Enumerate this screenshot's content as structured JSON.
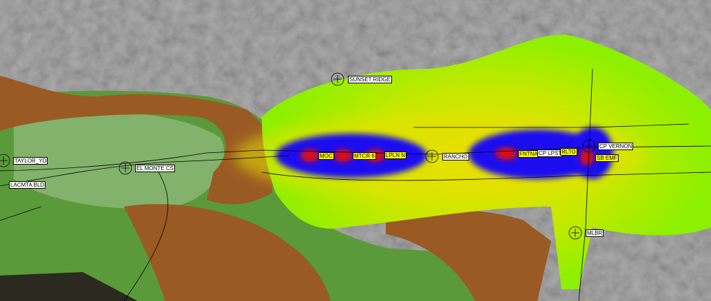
{
  "map": {
    "type": "radio coverage heatmap over shaded relief terrain",
    "colors": {
      "relief": "#8c8c8c",
      "lowland_green": "#5a9a3a",
      "pale_green": "#8cb878",
      "brown_hills": "#9a5a24",
      "coverage_edge": "#8cf000",
      "coverage_mid": "#e8e000",
      "coverage_strong": "#1a10f0",
      "coverage_peak": "#e01010",
      "label_site": "#ffffff",
      "label_highlight": "#ffff00"
    },
    "sites": [
      {
        "name": "SUNSET RIDGE",
        "style": "white"
      },
      {
        "name": "TAYLOR_YD",
        "style": "white"
      },
      {
        "name": "LACMTA BLD",
        "style": "white"
      },
      {
        "name": "EL MONTE CS",
        "style": "white"
      },
      {
        "name": "MOC",
        "style": "yellow"
      },
      {
        "name": "MTCR 6",
        "style": "yellow"
      },
      {
        "name": "LPLN N",
        "style": "yellow"
      },
      {
        "name": "RANCHO",
        "style": "white"
      },
      {
        "name": "FNTNA",
        "style": "yellow"
      },
      {
        "name": "CP LPST",
        "style": "white"
      },
      {
        "name": "RLTO",
        "style": "yellow"
      },
      {
        "name": "CP VERNON",
        "style": "white"
      },
      {
        "name": "SB EMF",
        "style": "yellow"
      },
      {
        "name": "MLBR",
        "style": "white"
      }
    ]
  }
}
